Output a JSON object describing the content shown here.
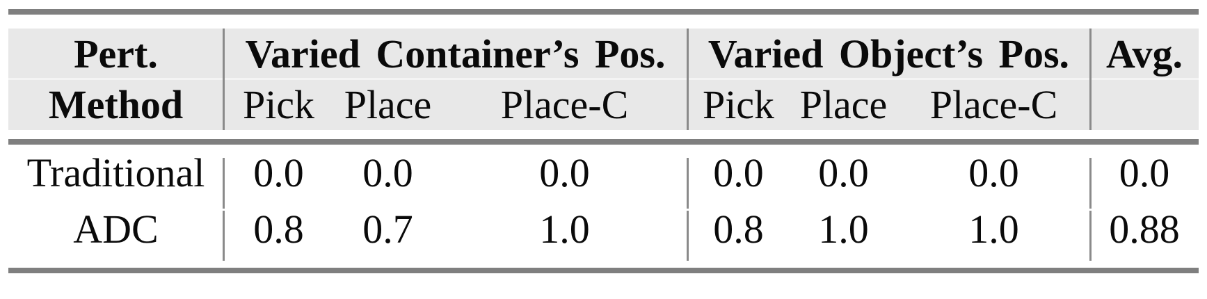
{
  "table": {
    "header": {
      "method_line1": "Pert.",
      "method_line2": "Method",
      "group1": "Varied Container’s Pos.",
      "group2": "Varied Object’s Pos.",
      "avg": "Avg.",
      "sub": [
        "Pick",
        "Place",
        "Place-C"
      ]
    },
    "rows": [
      {
        "method": "Traditional",
        "values": [
          "0.0",
          "0.0",
          "0.0",
          "0.0",
          "0.0",
          "0.0",
          "0.0"
        ]
      },
      {
        "method": "ADC",
        "values": [
          "0.8",
          "0.7",
          "1.0",
          "0.8",
          "1.0",
          "1.0",
          "0.88"
        ]
      }
    ]
  },
  "chart_data": {
    "type": "table",
    "title": "",
    "column_groups": [
      "Varied Container’s Pos.",
      "Varied Object’s Pos."
    ],
    "columns": [
      "Pert. Method",
      "Pick",
      "Place",
      "Place-C",
      "Pick",
      "Place",
      "Place-C",
      "Avg."
    ],
    "rows": [
      [
        "Traditional",
        0.0,
        0.0,
        0.0,
        0.0,
        0.0,
        0.0,
        0.0
      ],
      [
        "ADC",
        0.8,
        0.7,
        1.0,
        0.8,
        1.0,
        1.0,
        0.88
      ]
    ]
  },
  "colors": {
    "header_bg": "#e8e8e8",
    "rule": "#7f7f7f",
    "separator": "#8a8a8a",
    "text": "#0a0a0a",
    "background": "#ffffff"
  }
}
